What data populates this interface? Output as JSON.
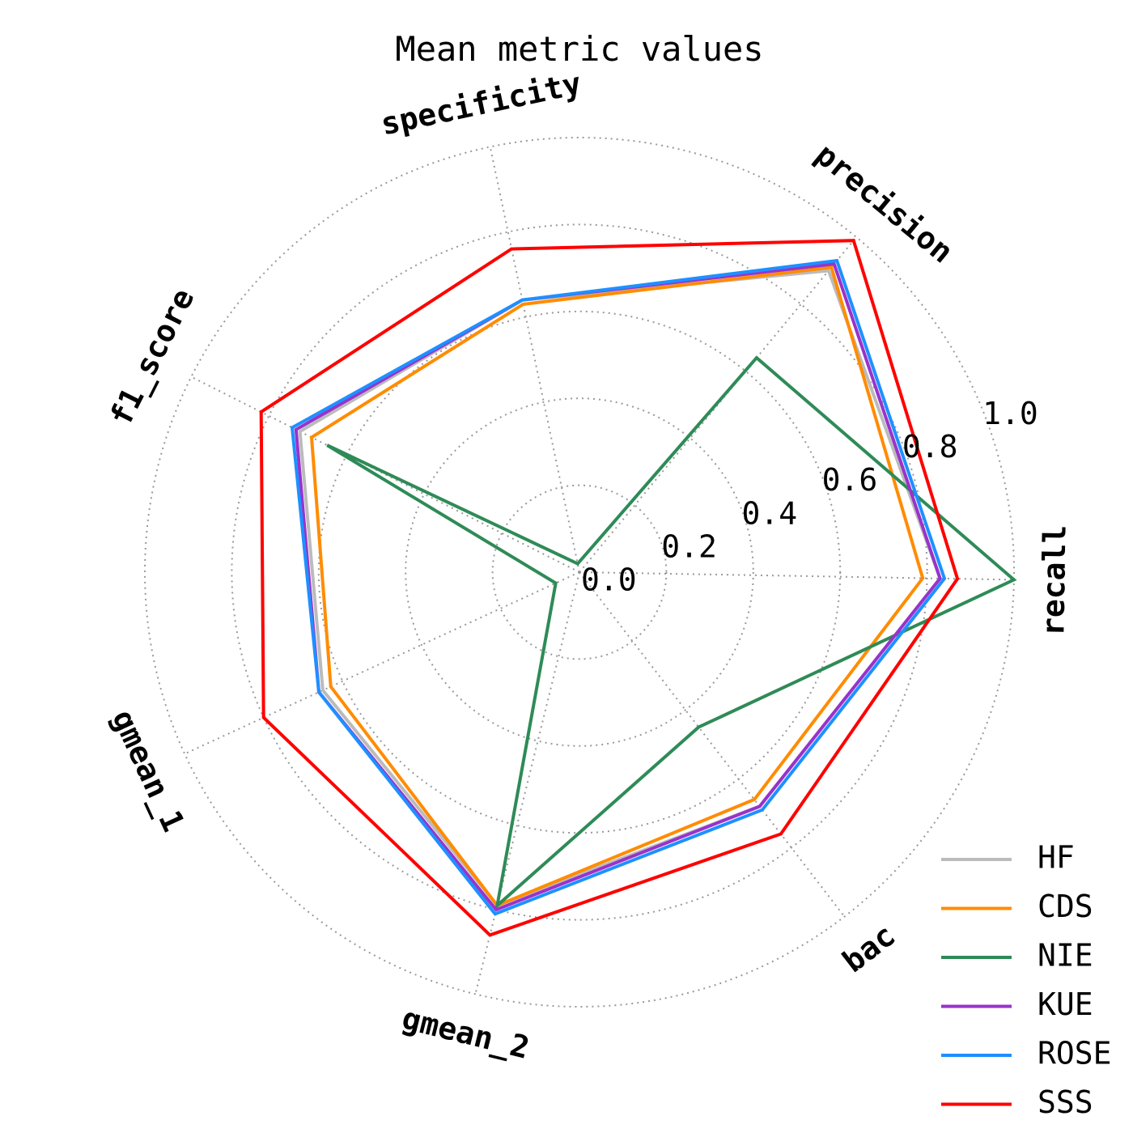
{
  "chart_data": {
    "type": "radar",
    "title": "Mean metric values",
    "axes": [
      "recall",
      "precision",
      "specificity",
      "f1_score",
      "gmean_1",
      "gmean_2",
      "bac"
    ],
    "rlim": [
      0,
      1.0
    ],
    "rticks": [
      "0.0",
      "0.2",
      "0.4",
      "0.6",
      "0.8",
      "1.0"
    ],
    "grid": true,
    "legend_position": "bottom-right",
    "series": [
      {
        "name": "HF",
        "color": "#bbbbbb",
        "values": [
          0.83,
          0.9,
          0.64,
          0.72,
          0.65,
          0.79,
          0.68
        ]
      },
      {
        "name": "CDS",
        "color": "#ff8c00",
        "values": [
          0.79,
          0.91,
          0.63,
          0.69,
          0.63,
          0.79,
          0.66
        ]
      },
      {
        "name": "NIE",
        "color": "#2e8b57",
        "values": [
          1.0,
          0.64,
          0.02,
          0.65,
          0.06,
          0.79,
          0.45
        ]
      },
      {
        "name": "KUE",
        "color": "#9932cc",
        "values": [
          0.83,
          0.92,
          0.64,
          0.73,
          0.66,
          0.8,
          0.68
        ]
      },
      {
        "name": "ROSE",
        "color": "#1e90ff",
        "values": [
          0.84,
          0.93,
          0.64,
          0.74,
          0.66,
          0.81,
          0.69
        ]
      },
      {
        "name": "SSS",
        "color": "#ff0000",
        "values": [
          0.87,
          0.99,
          0.76,
          0.82,
          0.8,
          0.86,
          0.76
        ]
      }
    ]
  }
}
